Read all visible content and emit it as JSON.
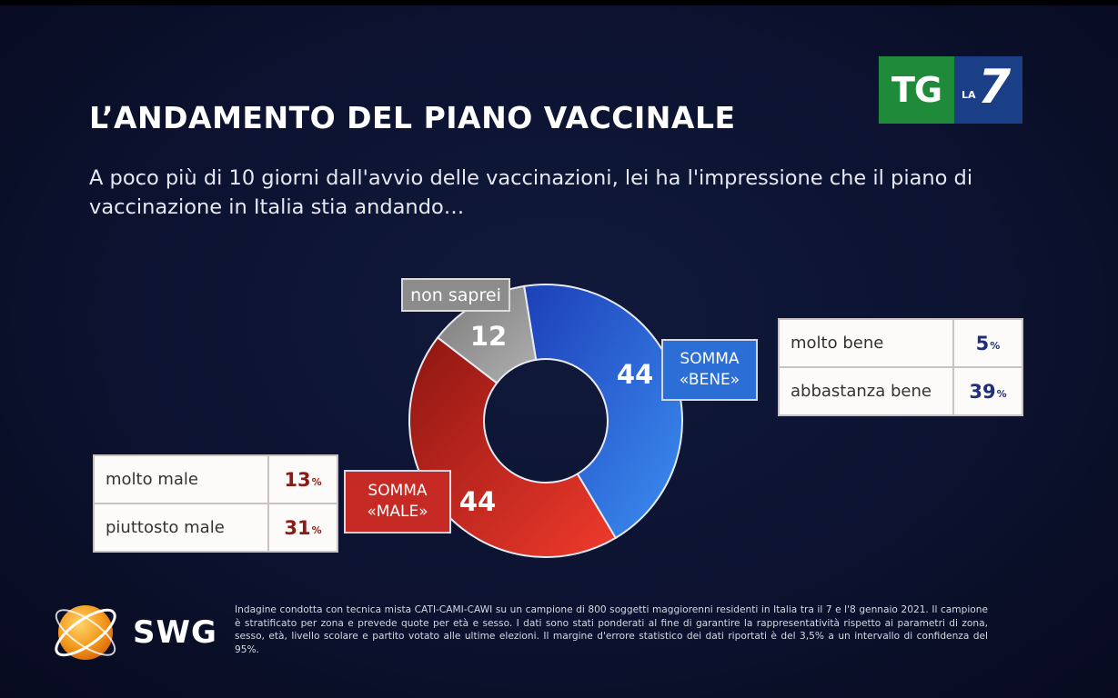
{
  "title": "L’ANDAMENTO DEL PIANO VACCINALE",
  "question": "A poco più di 10 giorni dall'avvio delle vaccinazioni, lei ha l'impressione che il piano di vaccinazione in Italia stia andando…",
  "broadcaster_logo": {
    "tg": "TG",
    "la": "LA",
    "seven": "7"
  },
  "chart_data": {
    "type": "pie",
    "donut": true,
    "segments": [
      {
        "label": "SOMMA «BENE»",
        "value": 44,
        "color": "#2f74e0"
      },
      {
        "label": "SOMMA «MALE»",
        "value": 44,
        "color": "#d1251e"
      },
      {
        "label": "non saprei",
        "value": 12,
        "color": "#9a9a9a"
      }
    ]
  },
  "labels": {
    "somma_bene": [
      "SOMMA",
      "«BENE»"
    ],
    "somma_male": [
      "SOMMA",
      "«MALE»"
    ],
    "non_saprei": "non saprei",
    "value_bene": "44",
    "value_male": "44",
    "value_nonsap": "12"
  },
  "table_bene": [
    {
      "label": "molto bene",
      "value": "5",
      "unit": "%"
    },
    {
      "label": "abbastanza bene",
      "value": "39",
      "unit": "%"
    }
  ],
  "table_male": [
    {
      "label": "molto male",
      "value": "13",
      "unit": "%"
    },
    {
      "label": "piuttosto male",
      "value": "31",
      "unit": "%"
    }
  ],
  "source_logo": "SWG",
  "footnote": "Indagine condotta con tecnica mista CATI-CAMI-CAWI su un campione di 800 soggetti maggiorenni residenti in Italia tra il 7 e l'8 gennaio 2021. Il campione è stratificato per zona e prevede quote per età e sesso. I dati sono stati ponderati al fine di garantire la rappresentatività rispetto ai parametri di zona, sesso, età, livello scolare e partito votato alle ultime elezioni. Il margine d'errore statistico dei dati riportati è del 3,5% a un intervallo di confidenza del 95%."
}
